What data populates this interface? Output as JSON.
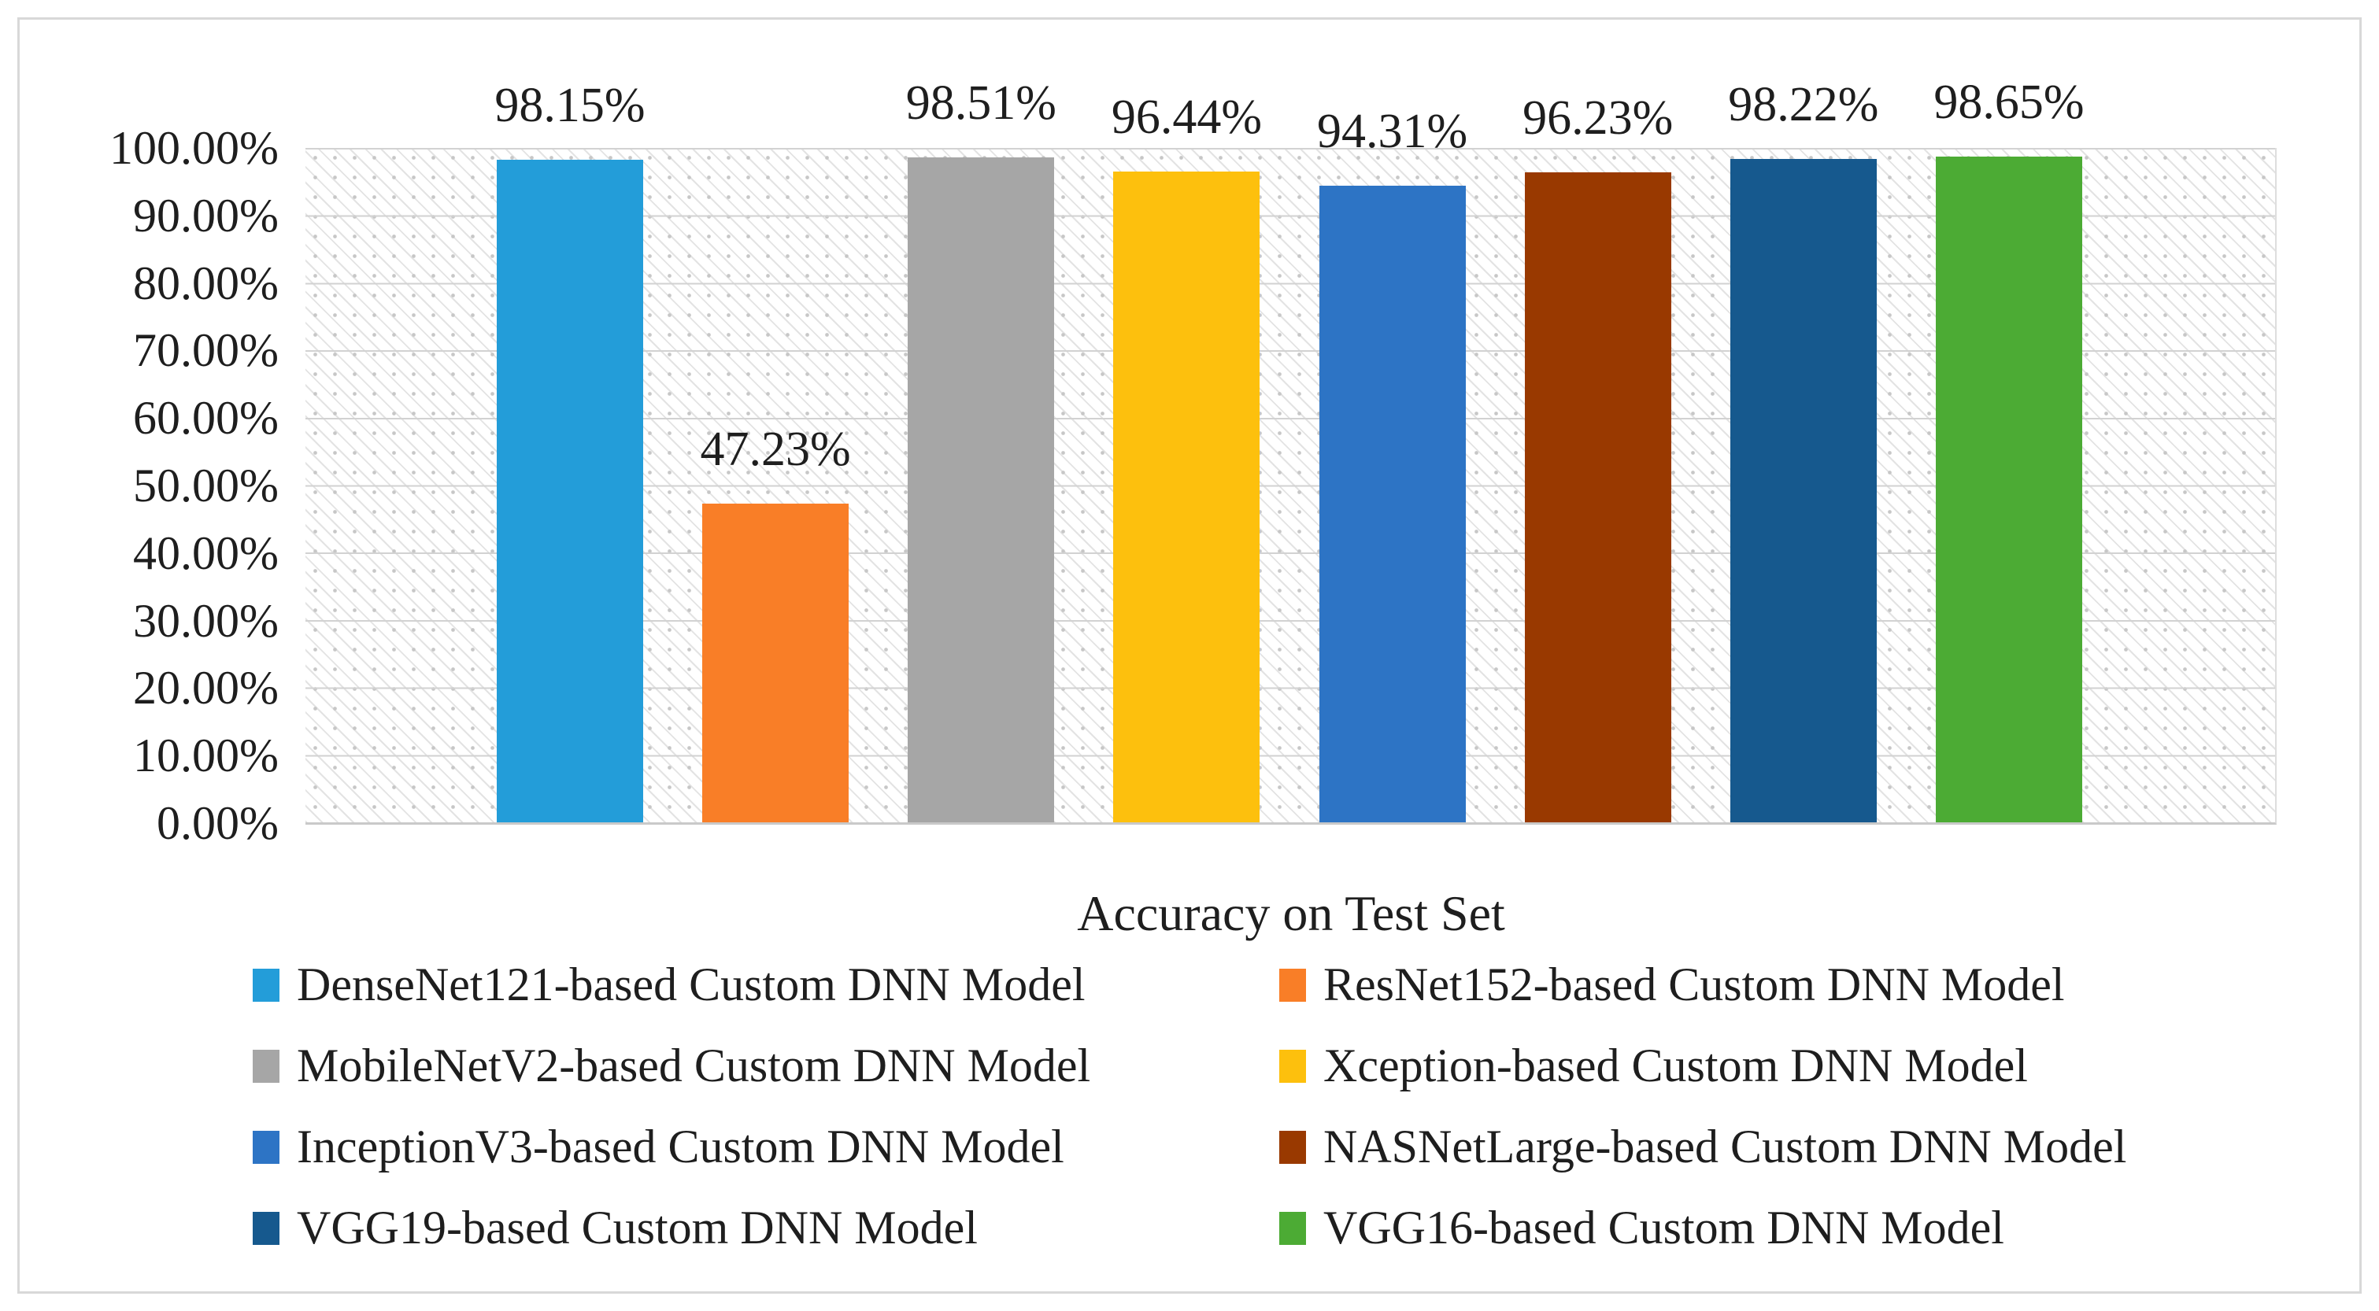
{
  "chart_data": {
    "type": "bar",
    "title": "",
    "xlabel": "Accuracy on Test Set",
    "ylabel": "",
    "ylim": [
      0,
      100
    ],
    "ytick_step": 10,
    "grid": true,
    "plot_background": "dotted-diagonal-hatch",
    "legend_position": "bottom",
    "legend_columns": 2,
    "categories": [
      "DenseNet121-based Custom DNN Model",
      "ResNet152-based Custom DNN Model",
      "MobileNetV2-based Custom DNN Model",
      "Xception-based Custom DNN Model",
      "InceptionV3-based Custom DNN Model",
      "NASNetLarge-based Custom DNN Model",
      "VGG19-based Custom DNN Model",
      "VGG16-based Custom DNN Model"
    ],
    "values": [
      98.15,
      47.23,
      98.51,
      96.44,
      94.31,
      96.23,
      98.22,
      98.65
    ],
    "data_labels": [
      "98.15%",
      "47.23%",
      "98.51%",
      "96.44%",
      "94.31%",
      "96.23%",
      "98.22%",
      "98.65%"
    ],
    "colors": [
      "#239DD9",
      "#F97E27",
      "#A6A6A6",
      "#FDC00D",
      "#2D74C5",
      "#993900",
      "#16598E",
      "#4CAB34"
    ],
    "y_ticks": [
      "100.00%",
      "90.00%",
      "80.00%",
      "70.00%",
      "60.00%",
      "50.00%",
      "40.00%",
      "30.00%",
      "20.00%",
      "10.00%",
      "0.00%"
    ]
  },
  "style_colors": {
    "gridline": "#d2d2d2",
    "axis_line": "#c9c9c9",
    "chart_border": "#d8d8d8",
    "text": "#1e1e1e"
  }
}
